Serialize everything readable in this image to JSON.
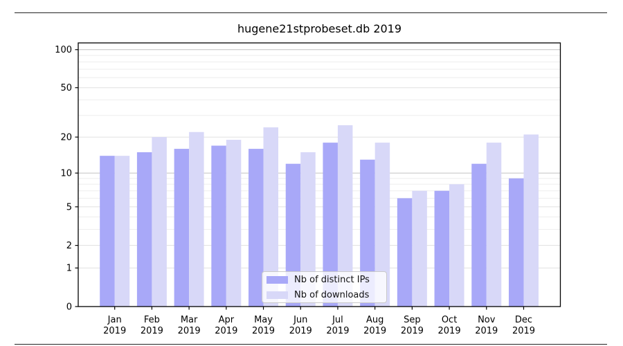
{
  "chart_data": {
    "type": "bar",
    "title": "hugene21stprobeset.db 2019",
    "categories": [
      "Jan",
      "Feb",
      "Mar",
      "Apr",
      "May",
      "Jun",
      "Jul",
      "Aug",
      "Sep",
      "Oct",
      "Nov",
      "Dec"
    ],
    "x_tick_year": "2019",
    "series": [
      {
        "name": "Nb of distinct IPs",
        "color": "#a8a8f8",
        "values": [
          14,
          15,
          16,
          17,
          16,
          12,
          18,
          13,
          6,
          7,
          12,
          9
        ]
      },
      {
        "name": "Nb of downloads",
        "color": "#d8d8f8",
        "values": [
          14,
          20,
          22,
          19,
          24,
          15,
          25,
          18,
          7,
          8,
          18,
          21
        ]
      }
    ],
    "yscale": "log1p",
    "ylim": [
      0,
      113
    ],
    "yticks": [
      0,
      1,
      2,
      5,
      10,
      20,
      50,
      100
    ],
    "yticks_minor": [
      3,
      4,
      6,
      7,
      8,
      9,
      30,
      40,
      60,
      70,
      80,
      90
    ],
    "grid": true,
    "legend_position": "bottom-center",
    "colors": {
      "minor_grid": "#eeeeee",
      "labeled_grid": "#e0e0e0",
      "decade_grid": "#c2c2c2",
      "axis": "#000000",
      "text": "#000000"
    }
  }
}
